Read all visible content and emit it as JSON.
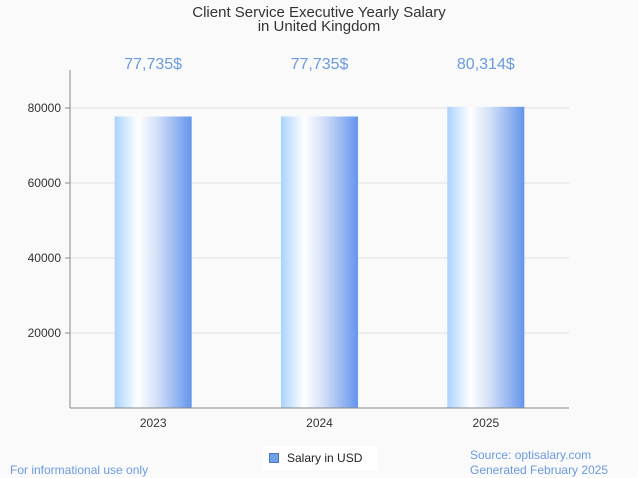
{
  "chart_data": {
    "type": "bar",
    "title": "Client Service Executive Yearly Salary",
    "subtitle": "in United Kingdom",
    "categories": [
      "2023",
      "2024",
      "2025"
    ],
    "series": [
      {
        "name": "Salary in USD",
        "values": [
          77735,
          77735,
          80314
        ]
      }
    ],
    "data_labels": [
      "77,735$",
      "77,735$",
      "80,314$"
    ],
    "yticks": [
      20000,
      40000,
      60000,
      80000
    ],
    "ytick_labels": [
      "20000",
      "40000",
      "60000",
      "80000"
    ],
    "ylim": [
      0,
      90133
    ],
    "xlabel": "",
    "ylabel": "",
    "grid": true,
    "legend_position": "bottom-center",
    "colors": {
      "bar_dark": "#6495ed",
      "bar_light": "#aad4ff",
      "label": "#6a9ae0",
      "grid": "#e0e0e0",
      "axis": "#888888"
    }
  },
  "footer": {
    "disclaimer": "For informational use only",
    "source": "Source: optisalary.com",
    "generated": "Generated February 2025"
  }
}
